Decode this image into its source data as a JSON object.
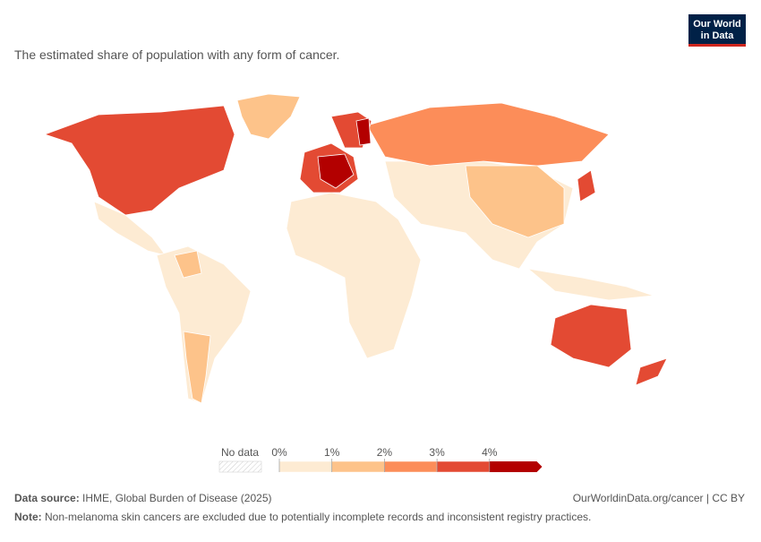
{
  "header": {
    "subtitle": "The estimated share of population with any form of cancer.",
    "logo": [
      "Our World",
      "in Data"
    ]
  },
  "legend": {
    "no_data": "No data",
    "ticks": [
      {
        "value": 0,
        "label": "0%"
      },
      {
        "value": 1,
        "label": "1%"
      },
      {
        "value": 2,
        "label": "2%"
      },
      {
        "value": 3,
        "label": "3%"
      },
      {
        "value": 4,
        "label": "4%"
      }
    ],
    "colors": [
      "#fdebd3",
      "#fdc38a",
      "#fc8d59",
      "#e34a33",
      "#b30000"
    ]
  },
  "footer": {
    "source_label": "Data source:",
    "source": "IHME, Global Burden of Disease (2025)",
    "url": "OurWorldinData.org/cancer | CC BY",
    "note_label": "Note:",
    "note": "Non-melanoma skin cancers are excluded due to potentially incomplete records and inconsistent registry practices."
  }
}
